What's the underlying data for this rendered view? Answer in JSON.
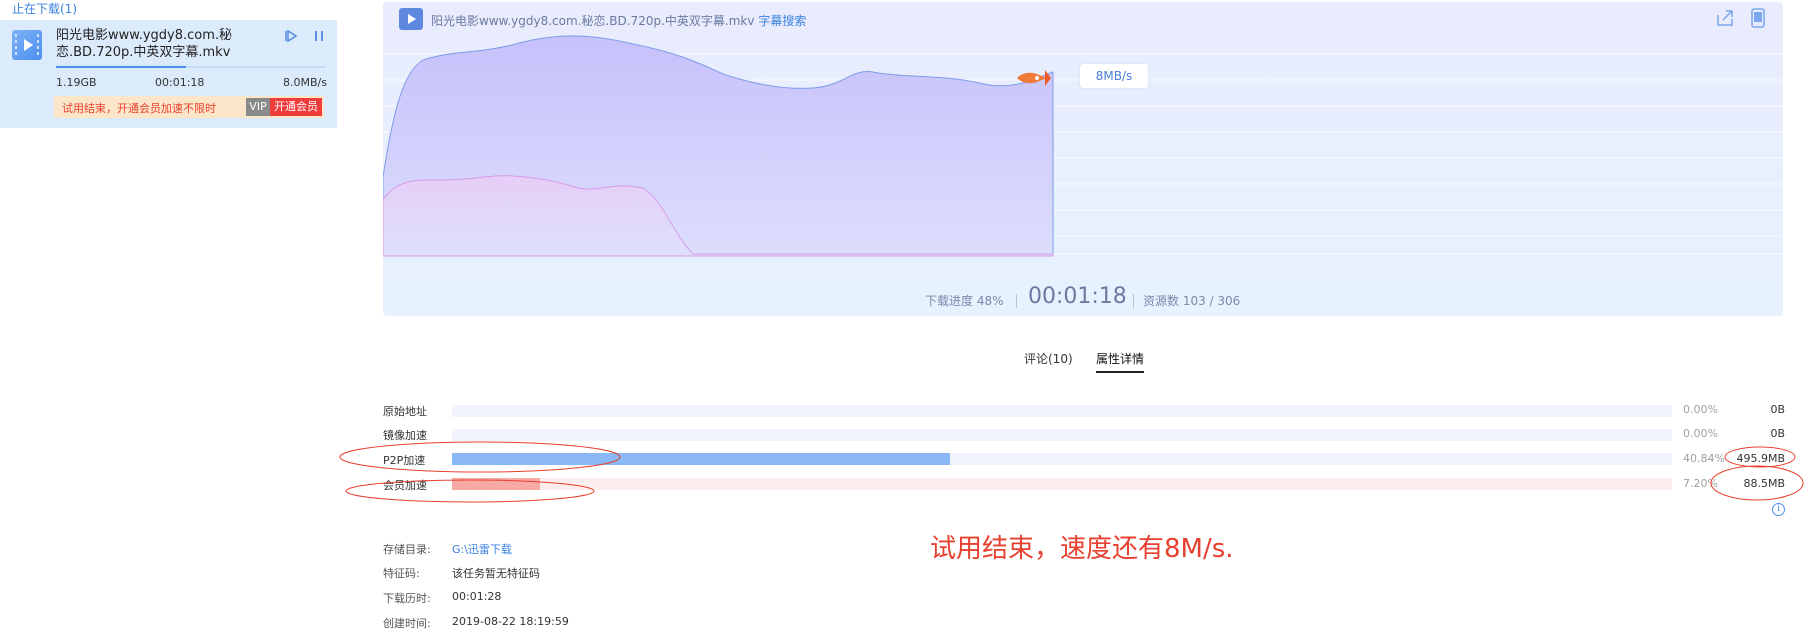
{
  "left_panel": {
    "title": "止在下载(1)",
    "task": {
      "name": "阳光电影www.ygdy8.com.秘恋.BD.720p.中英双字幕.mkv",
      "size": "1.19GB",
      "time": "00:01:18",
      "speed": "8.0MB/s",
      "progress": 0.48,
      "trial_text": "试用结束，开通会员加速不限时",
      "vip_badge": "VIP",
      "open_vip_label": "开通会员"
    }
  },
  "chart_panel": {
    "file_name": "阳光电影www.ygdy8.com.秘恋.BD.720p.中英双字幕.mkv",
    "subtitle_search": "字幕搜索",
    "speed_badge": "8MB/s",
    "progress_label": "下载进度 48%",
    "elapsed_time": "00:01:18",
    "resources_label": "资源数 103 / 306",
    "colors": {
      "speed_area": "#c9c5fb",
      "vip_line": "#d87fd8"
    }
  },
  "tabs": [
    {
      "label": "评论(10)"
    },
    {
      "label": "属性详情",
      "active": true
    }
  ],
  "sources": [
    {
      "label": "原始地址",
      "percent": "0.00%",
      "size": "0B",
      "fraction": 0.0,
      "color": "#f1f5fb"
    },
    {
      "label": "镜像加速",
      "percent": "0.00%",
      "size": "0B",
      "fraction": 0.0,
      "color": "#f1f5fb"
    },
    {
      "label": "P2P加速",
      "percent": "40.84%",
      "size": "495.9MB",
      "fraction": 0.4084,
      "color": "#8ab8f5"
    },
    {
      "label": "会员加速",
      "percent": "7.20%",
      "size": "88.5MB",
      "fraction": 0.072,
      "color": "#f7a9a4"
    }
  ],
  "annotation": "试用结束，速度还有8M/s.",
  "properties": [
    {
      "label": "存储目录:",
      "value": "G:\\迅雷下载"
    },
    {
      "label": "特征码:",
      "value": "该任务暂无特征码"
    },
    {
      "label": "下载历时:",
      "value": "00:01:28"
    },
    {
      "label": "创建时间:",
      "value": "2019-08-22 18:19:59"
    }
  ],
  "icons": [
    "play-icon",
    "pause-icon",
    "export-icon",
    "phone-icon",
    "rocket-icon",
    "info-icon"
  ]
}
